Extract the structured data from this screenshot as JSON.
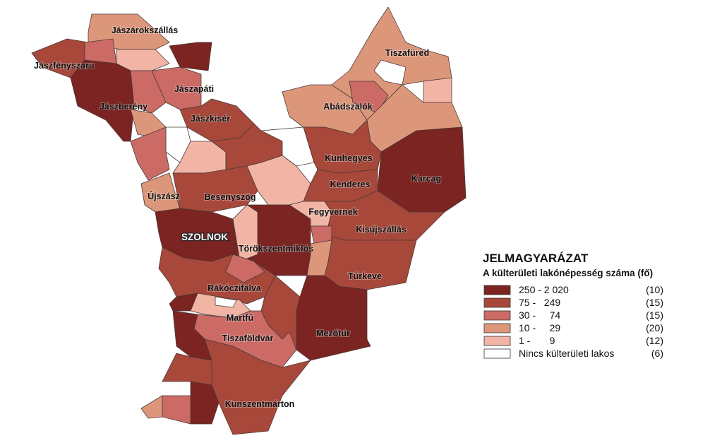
{
  "map": {
    "places": [
      "Jászárokszállás",
      "Jászfényszaru",
      "Tiszafüred",
      "Jászapáti",
      "Jászberény",
      "Abádszalók",
      "Jászkisér",
      "Kunhegyes",
      "Karcag",
      "Kenderes",
      "Újszász",
      "Besenyszög",
      "Fegyvernek",
      "Kisújszállás",
      "SZOLNOK",
      "Törökszentmiklós",
      "Túrkeve",
      "Rákóczifalva",
      "Martfű",
      "Tiszaföldvár",
      "Mezőtúr",
      "Kunszentmárton"
    ]
  },
  "legend": {
    "title": "JELMAGYARÁZAT",
    "subtitle": "A külterületi lakónépesség száma (fő)",
    "items": [
      {
        "range": "250 - 2 020",
        "count": "(10)",
        "color": "#7b2421"
      },
      {
        "range": "75 -   249",
        "count": "(15)",
        "color": "#a8483a"
      },
      {
        "range": "30 -     74",
        "count": "(15)",
        "color": "#cc6a66"
      },
      {
        "range": "10 -     29",
        "count": "(20)",
        "color": "#dc977a"
      },
      {
        "range": "1 -       9",
        "count": "(12)",
        "color": "#f2b5a5"
      },
      {
        "range": "Nincs külterületi lakos",
        "count": "(6)",
        "color": "#ffffff"
      }
    ]
  }
}
